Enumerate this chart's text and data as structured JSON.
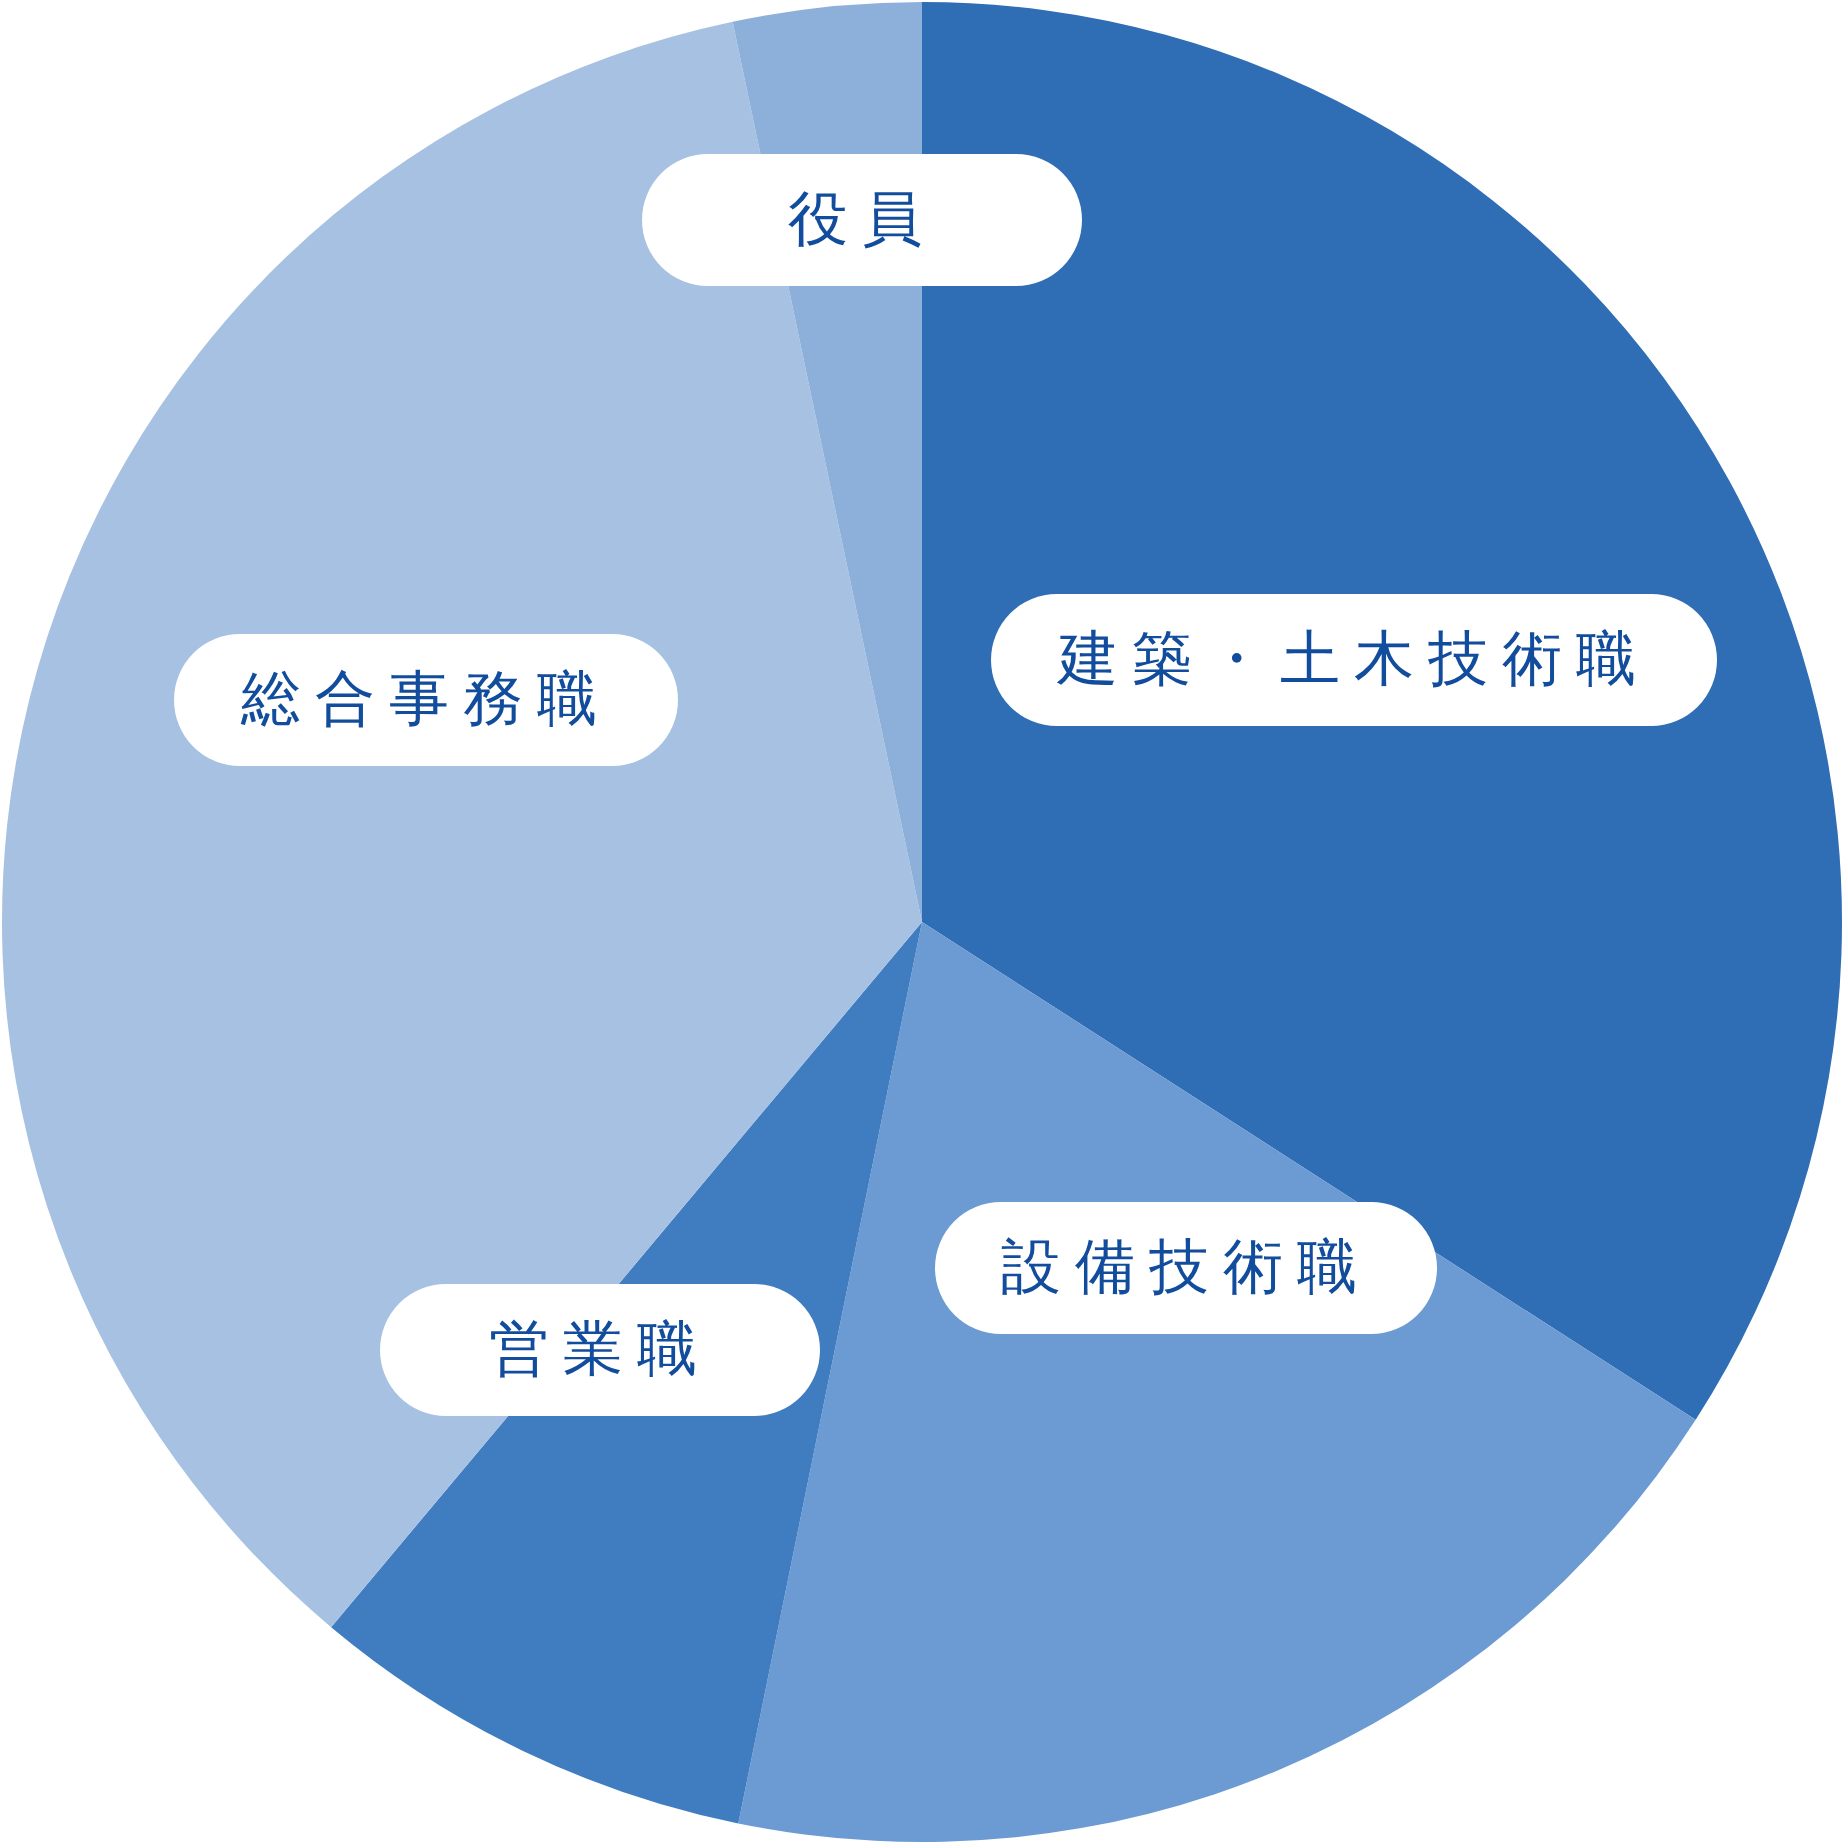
{
  "chart_data": {
    "type": "pie",
    "categories": [
      "建築・土木技術職",
      "設備技術職",
      "営業職",
      "総合事務職",
      "役員"
    ],
    "values": [
      34.1,
      19.1,
      7.9,
      35.6,
      3.3
    ],
    "colors": [
      "#2f6db5",
      "#6b9bd2",
      "#3f7cc0",
      "#a7c1e2",
      "#8cb0da"
    ]
  }
}
